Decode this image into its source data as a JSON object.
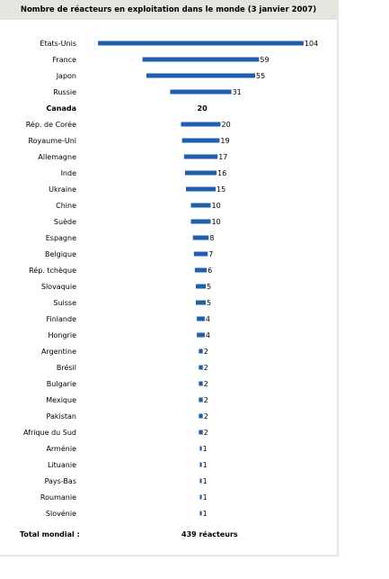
{
  "chart_data": {
    "type": "bar",
    "orientation": "horizontal",
    "title": "Nombre de réacteurs en exploitation dans le monde (3 janvier 2007)",
    "categories": [
      "États-Unis",
      "France",
      "Japon",
      "Russie",
      "Canada",
      "Rép. de Corée",
      "Royaume-Uni",
      "Allemagne",
      "Inde",
      "Ukraine",
      "Chine",
      "Suède",
      "Espagne",
      "Belgique",
      "Rép. tchèque",
      "Slovaquie",
      "Suisse",
      "Finlande",
      "Hongrie",
      "Argentine",
      "Brésil",
      "Bulgarie",
      "Mexique",
      "Pakistan",
      "Afrique du Sud",
      "Arménie",
      "Lituanie",
      "Pays-Bas",
      "Roumanie",
      "Slovénie"
    ],
    "values": [
      104,
      59,
      55,
      31,
      20,
      20,
      19,
      17,
      16,
      15,
      10,
      10,
      8,
      7,
      6,
      5,
      5,
      4,
      4,
      2,
      2,
      2,
      2,
      2,
      2,
      1,
      1,
      1,
      1,
      1
    ],
    "highlighted_category": "Canada",
    "bar_color": "#1f5fae",
    "xlabel": "",
    "ylabel": "",
    "grid": false,
    "legend": "none"
  },
  "total": {
    "label": "Total mondial :",
    "value": "439 réacteurs"
  }
}
